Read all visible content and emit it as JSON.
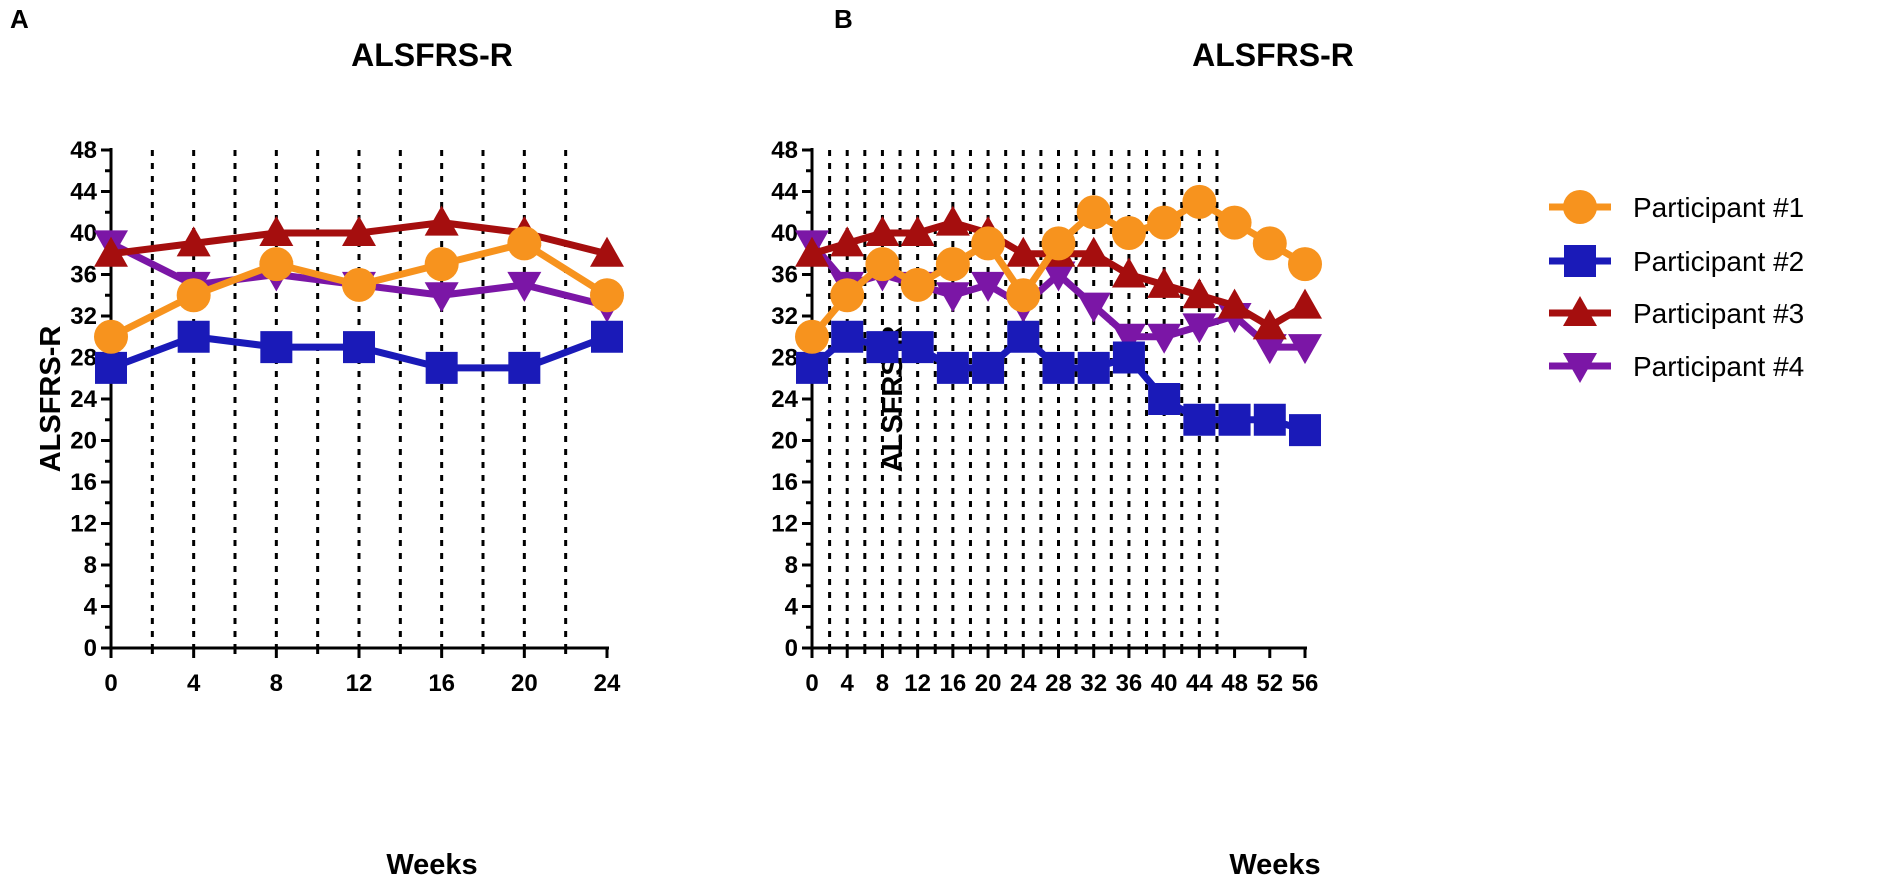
{
  "panel_labels": [
    "A",
    "B"
  ],
  "legend": {
    "position": "right of panel B",
    "entries": [
      {
        "name": "Participant #1",
        "marker": "circle",
        "color": "#F7931E"
      },
      {
        "name": "Participant #2",
        "marker": "square",
        "color": "#1A1AB8"
      },
      {
        "name": "Participant #3",
        "marker": "triangle-up",
        "color": "#A50E0E"
      },
      {
        "name": "Participant #4",
        "marker": "triangle-down",
        "color": "#7B16A6"
      }
    ]
  },
  "chart_data": [
    {
      "panel": "A",
      "type": "line",
      "title": "ALSFRS-R",
      "xlabel": "Weeks",
      "ylabel": "ALSFRS-R",
      "xlim": [
        0,
        24
      ],
      "ylim": [
        0,
        48
      ],
      "xticks": [
        0,
        4,
        8,
        12,
        16,
        20,
        24
      ],
      "yticks": [
        0,
        4,
        8,
        12,
        16,
        20,
        24,
        28,
        32,
        36,
        40,
        44,
        48
      ],
      "vertical_dotted_lines_at": [
        2,
        4,
        6,
        8,
        10,
        12,
        14,
        16,
        18,
        20,
        22
      ],
      "x": [
        0,
        4,
        8,
        12,
        16,
        20,
        24
      ],
      "series": [
        {
          "name": "Participant #1",
          "marker": "circle",
          "color": "#F7931E",
          "values": [
            30,
            34,
            37,
            35,
            37,
            39,
            34
          ]
        },
        {
          "name": "Participant #2",
          "marker": "square",
          "color": "#1A1AB8",
          "values": [
            27,
            30,
            29,
            29,
            27,
            27,
            30
          ]
        },
        {
          "name": "Participant #3",
          "marker": "triangle-up",
          "color": "#A50E0E",
          "values": [
            38,
            39,
            40,
            40,
            41,
            40,
            38
          ]
        },
        {
          "name": "Participant #4",
          "marker": "triangle-down",
          "color": "#7B16A6",
          "values": [
            39,
            35,
            36,
            35,
            34,
            35,
            33
          ]
        }
      ]
    },
    {
      "panel": "B",
      "type": "line",
      "title": "ALSFRS-R",
      "xlabel": "Weeks",
      "ylabel": "ALSFRS-R",
      "xlim": [
        0,
        56
      ],
      "ylim": [
        0,
        48
      ],
      "xticks": [
        0,
        4,
        8,
        12,
        16,
        20,
        24,
        28,
        32,
        36,
        40,
        44,
        48,
        52,
        56
      ],
      "yticks": [
        0,
        4,
        8,
        12,
        16,
        20,
        24,
        28,
        32,
        36,
        40,
        44,
        48
      ],
      "vertical_dotted_lines_at": [
        2,
        4,
        6,
        8,
        10,
        12,
        14,
        16,
        18,
        20,
        22,
        24,
        26,
        28,
        30,
        32,
        34,
        36,
        38,
        40,
        42,
        44,
        46
      ],
      "x": [
        0,
        4,
        8,
        12,
        16,
        20,
        24,
        28,
        32,
        36,
        40,
        44,
        48,
        52,
        56
      ],
      "series": [
        {
          "name": "Participant #1",
          "marker": "circle",
          "color": "#F7931E",
          "values": [
            30,
            34,
            37,
            35,
            37,
            39,
            34,
            39,
            42,
            40,
            41,
            43,
            41,
            39,
            37
          ]
        },
        {
          "name": "Participant #2",
          "marker": "square",
          "color": "#1A1AB8",
          "values": [
            27,
            30,
            29,
            29,
            27,
            27,
            30,
            27,
            27,
            28,
            24,
            22,
            22,
            22,
            21
          ]
        },
        {
          "name": "Participant #3",
          "marker": "triangle-up",
          "color": "#A50E0E",
          "values": [
            38,
            39,
            40,
            40,
            41,
            40,
            38,
            38,
            38,
            36,
            35,
            34,
            33,
            31,
            33
          ]
        },
        {
          "name": "Participant #4",
          "marker": "triangle-down",
          "color": "#7B16A6",
          "values": [
            39,
            35,
            36,
            35,
            34,
            35,
            33,
            36,
            33,
            30,
            30,
            31,
            32,
            29,
            29
          ]
        }
      ]
    }
  ]
}
